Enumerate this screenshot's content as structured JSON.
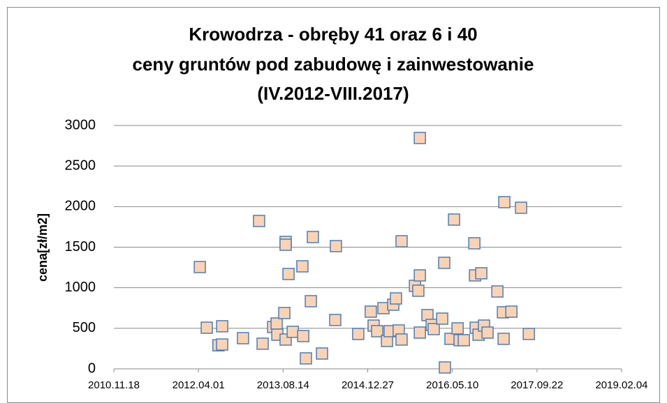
{
  "chart_data": {
    "type": "scatter",
    "title": [
      "Krowodrza - obręby 41 oraz 6 i 40",
      "ceny gruntów pod zabudowę i zainwestowanie",
      "(IV.2012-VIII.2017)"
    ],
    "y_label": "cena[zł/m2]",
    "color": "#fbd3b3",
    "edge_color": "#4a7ebb",
    "grid": true,
    "xlim": [
      40500,
      43500
    ],
    "xticks": [
      {
        "value": 40500,
        "label": "2010.11.18"
      },
      {
        "value": 41000,
        "label": "2012.04.01"
      },
      {
        "value": 41500,
        "label": "2013.08.14"
      },
      {
        "value": 42000,
        "label": "2014.12.27"
      },
      {
        "value": 42500,
        "label": "2016.05.10"
      },
      {
        "value": 43000,
        "label": "2017.09.22"
      },
      {
        "value": 43500,
        "label": "2019.02.04"
      }
    ],
    "ylim": [
      0,
      3000
    ],
    "yticks": [
      0,
      500,
      1000,
      1500,
      2000,
      2500,
      3000
    ],
    "x": [
      41008,
      41049,
      41118,
      41140,
      41140,
      41263,
      41358,
      41379,
      41441,
      41462,
      41466,
      41507,
      41515,
      41515,
      41515,
      41532,
      41557,
      41614,
      41619,
      41635,
      41664,
      41676,
      41730,
      41808,
      41812,
      41944,
      42018,
      42035,
      42056,
      42093,
      42114,
      42130,
      42151,
      42167,
      42183,
      42200,
      42200,
      42279,
      42299,
      42308,
      42308,
      42308,
      42353,
      42378,
      42390,
      42440,
      42452,
      42456,
      42489,
      42510,
      42531,
      42543,
      42568,
      42630,
      42634,
      42638,
      42655,
      42671,
      42687,
      42708,
      42766,
      42799,
      42803,
      42807,
      42849,
      42906,
      42952
    ],
    "values": [
      1255,
      507,
      290,
      300,
      525,
      378,
      1823,
      310,
      516,
      559,
      421,
      688,
      1565,
      1530,
      361,
      1169,
      456,
      1264,
      404,
      129,
      834,
      1625,
      189,
      602,
      1513,
      430,
      705,
      533,
      464,
      748,
      344,
      464,
      791,
      868,
      473,
      1573,
      361,
      1023,
      963,
      2846,
      447,
      1152,
      662,
      542,
      490,
      619,
      1307,
      17,
      370,
      1840,
      499,
      353,
      353,
      1548,
      1152,
      507,
      421,
      1178,
      533,
      447,
      954,
      697,
      370,
      2055,
      705,
      1986,
      430
    ]
  }
}
